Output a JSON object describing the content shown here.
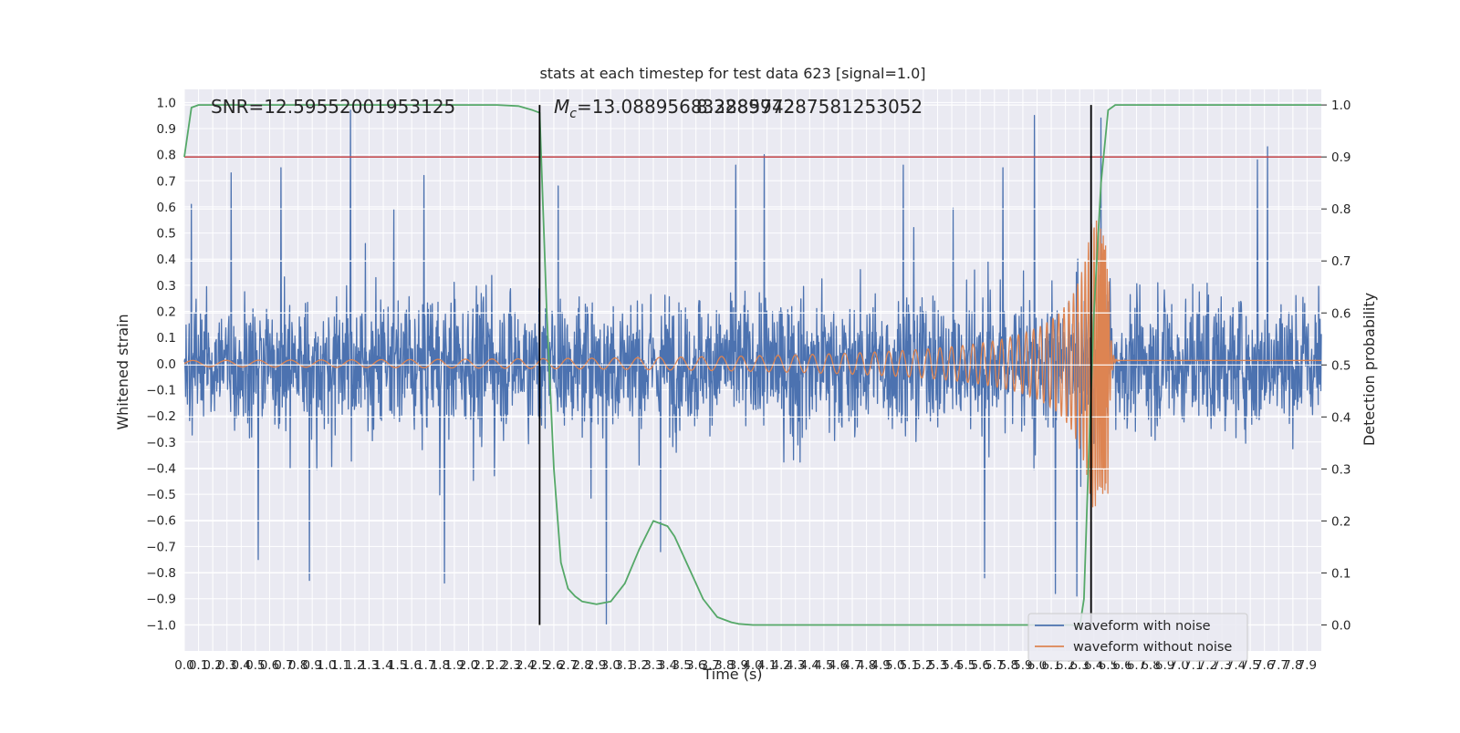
{
  "chart_data": {
    "type": "line",
    "title": "stats at each timestep for test data 623 [signal=1.0]",
    "xlabel": "Time (s)",
    "ylabel": "Whitened strain",
    "y2label": "Detection probability",
    "xlim": [
      0.0,
      8.0
    ],
    "ylim": [
      -1.1,
      1.05
    ],
    "y2lim": [
      -0.05,
      1.03
    ],
    "x_ticks": [
      0.0,
      0.1,
      0.2,
      0.3,
      0.4,
      0.5,
      0.6,
      0.7,
      0.8,
      0.9,
      1.0,
      1.1,
      1.2,
      1.3,
      1.4,
      1.5,
      1.6,
      1.7,
      1.8,
      1.9,
      2.0,
      2.1,
      2.2,
      2.3,
      2.4,
      2.5,
      2.6,
      2.7,
      2.8,
      2.9,
      3.0,
      3.1,
      3.2,
      3.3,
      3.4,
      3.5,
      3.6,
      3.7,
      3.8,
      3.9,
      4.0,
      4.1,
      4.2,
      4.3,
      4.4,
      4.5,
      4.6,
      4.7,
      4.8,
      4.9,
      5.0,
      5.1,
      5.2,
      5.3,
      5.4,
      5.5,
      5.6,
      5.7,
      5.8,
      5.9,
      6.0,
      6.1,
      6.2,
      6.3,
      6.4,
      6.5,
      6.6,
      6.7,
      6.8,
      6.9,
      7.0,
      7.1,
      7.2,
      7.3,
      7.4,
      7.5,
      7.6,
      7.7,
      7.8,
      7.9
    ],
    "y_ticks": [
      -1.0,
      -0.9,
      -0.8,
      -0.7,
      -0.6,
      -0.5,
      -0.4,
      -0.3,
      -0.2,
      -0.1,
      0.0,
      0.1,
      0.2,
      0.3,
      0.4,
      0.5,
      0.6,
      0.7,
      0.8,
      0.9,
      1.0
    ],
    "y2_ticks": [
      0.0,
      0.1,
      0.2,
      0.3,
      0.4,
      0.5,
      0.6,
      0.7,
      0.8,
      0.9,
      1.0
    ],
    "grid": true,
    "legend": "lower-right",
    "annotations": {
      "snr": "SNR=12.59552001953125",
      "mc_prefix": "M",
      "mc_sub": "c",
      "mc_value": "=13.088956832885742",
      "overlap_value": "8.328997287581253052"
    },
    "series": [
      {
        "name": "waveform with noise",
        "color": "#4c72b0",
        "description_values": "noise amplitude envelope",
        "spikes": [
          {
            "x": 0.05,
            "y": 0.61
          },
          {
            "x": 0.33,
            "y": 0.73
          },
          {
            "x": 0.68,
            "y": 0.75
          },
          {
            "x": 1.17,
            "y": 0.97
          },
          {
            "x": 2.63,
            "y": 0.68
          },
          {
            "x": 3.88,
            "y": 0.76
          },
          {
            "x": 4.08,
            "y": 0.8
          },
          {
            "x": 5.06,
            "y": 0.76
          },
          {
            "x": 5.76,
            "y": 0.75
          },
          {
            "x": 5.98,
            "y": 0.95
          },
          {
            "x": 6.45,
            "y": 0.94
          },
          {
            "x": 7.55,
            "y": 0.78
          },
          {
            "x": 7.62,
            "y": 0.83
          },
          {
            "x": 0.88,
            "y": -0.83
          },
          {
            "x": 1.83,
            "y": -0.84
          },
          {
            "x": 2.97,
            "y": -1.0
          },
          {
            "x": 5.63,
            "y": -0.82
          },
          {
            "x": 6.13,
            "y": -0.88
          },
          {
            "x": 6.28,
            "y": -0.89
          },
          {
            "x": 0.52,
            "y": -0.75
          },
          {
            "x": 3.35,
            "y": -0.72
          }
        ]
      },
      {
        "name": "waveform without noise",
        "color": "#dd8452",
        "chirp": {
          "t_merger": 6.5,
          "amp_start": 0.012,
          "amp_peak": 0.53,
          "amp_min_peak": -0.5,
          "ringdown_level": 0.0
        }
      },
      {
        "name": "detection probability",
        "color": "#55a868",
        "axis": "right",
        "x": [
          0.0,
          0.05,
          0.1,
          0.2,
          0.5,
          1.0,
          1.5,
          2.0,
          2.2,
          2.35,
          2.45,
          2.5,
          2.55,
          2.6,
          2.65,
          2.7,
          2.75,
          2.8,
          2.9,
          3.0,
          3.1,
          3.2,
          3.3,
          3.4,
          3.45,
          3.55,
          3.65,
          3.75,
          3.85,
          3.9,
          4.0,
          4.5,
          5.0,
          5.5,
          6.0,
          6.25,
          6.3,
          6.33,
          6.36,
          6.4,
          6.45,
          6.5,
          6.55,
          6.6,
          7.0,
          7.5,
          8.0
        ],
        "y": [
          0.9,
          0.995,
          1.0,
          1.0,
          1.0,
          1.0,
          1.0,
          1.0,
          1.0,
          0.998,
          0.99,
          0.985,
          0.6,
          0.3,
          0.12,
          0.07,
          0.055,
          0.045,
          0.04,
          0.045,
          0.08,
          0.145,
          0.2,
          0.19,
          0.17,
          0.11,
          0.05,
          0.015,
          0.005,
          0.002,
          0.0,
          0.0,
          0.0,
          0.0,
          0.0,
          0.0,
          -0.005,
          0.05,
          0.3,
          0.6,
          0.85,
          0.99,
          1.0,
          1.0,
          1.0,
          1.0,
          1.0
        ]
      },
      {
        "name": "threshold",
        "color": "#c44e52",
        "axis": "right",
        "y_const": 0.9
      }
    ],
    "vlines": [
      2.5,
      6.38
    ]
  }
}
